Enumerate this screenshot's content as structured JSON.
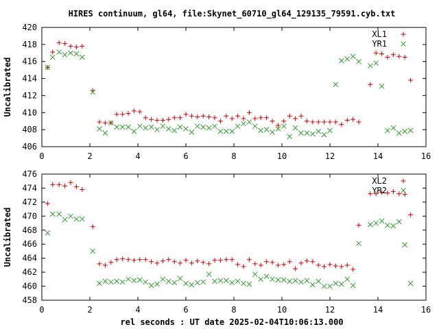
{
  "title": "HIRES continuum, gl64, file:Skynet_60710_gl64_129135_79591.cyb.txt",
  "xlabel": "rel seconds : UT date 2025-02-04T10:06:13.000",
  "colors": {
    "series_a": "#cc0000",
    "series_b": "#339933",
    "axis": "#000000",
    "background": "#ffffff"
  },
  "chart_data": [
    {
      "type": "scatter",
      "ylabel": "Uncalibrated",
      "xlim": [
        0,
        16
      ],
      "ylim": [
        406,
        420
      ],
      "xticks": [
        "0",
        "2",
        "4",
        "6",
        "8",
        "10",
        "12",
        "14",
        "16"
      ],
      "yticks": [
        "406",
        "408",
        "410",
        "412",
        "414",
        "416",
        "418",
        "420"
      ],
      "legend_position": "top-right",
      "grid": false,
      "series": [
        {
          "name": "XL1",
          "marker": "plus",
          "color": "#cc0000",
          "x": [
            0.24,
            0.45,
            0.72,
            0.96,
            1.2,
            1.44,
            1.68,
            2.12,
            2.4,
            2.64,
            2.88,
            3.12,
            3.36,
            3.6,
            3.84,
            4.08,
            4.32,
            4.56,
            4.8,
            5.04,
            5.28,
            5.52,
            5.76,
            6.0,
            6.24,
            6.48,
            6.72,
            6.96,
            7.2,
            7.44,
            7.68,
            7.92,
            8.16,
            8.4,
            8.64,
            8.88,
            9.12,
            9.36,
            9.6,
            9.84,
            10.08,
            10.32,
            10.56,
            10.8,
            11.04,
            11.28,
            11.52,
            11.76,
            12.0,
            12.24,
            12.48,
            12.72,
            12.96,
            13.2,
            13.68,
            13.92,
            14.16,
            14.4,
            14.64,
            14.88,
            15.12,
            15.36
          ],
          "y": [
            415.3,
            417.1,
            418.2,
            418.1,
            417.8,
            417.7,
            417.8,
            412.6,
            408.9,
            408.8,
            408.8,
            409.8,
            409.8,
            409.9,
            410.2,
            410.1,
            409.4,
            409.2,
            409.1,
            409.1,
            409.2,
            409.4,
            409.4,
            409.8,
            409.6,
            409.5,
            409.6,
            409.5,
            409.4,
            409.0,
            409.6,
            409.3,
            409.6,
            409.3,
            410.0,
            409.3,
            409.4,
            409.4,
            409.0,
            408.5,
            409.0,
            409.6,
            409.3,
            409.6,
            409.0,
            408.9,
            408.9,
            408.9,
            408.9,
            408.9,
            408.6,
            409.1,
            409.2,
            408.9,
            413.3,
            417.0,
            416.9,
            416.5,
            416.8,
            416.6,
            416.5,
            413.8
          ]
        },
        {
          "name": "YR1",
          "marker": "cross",
          "color": "#339933",
          "x": [
            0.24,
            0.45,
            0.72,
            0.96,
            1.2,
            1.44,
            1.68,
            2.12,
            2.4,
            2.64,
            2.88,
            3.12,
            3.36,
            3.6,
            3.84,
            4.08,
            4.32,
            4.56,
            4.8,
            5.04,
            5.28,
            5.52,
            5.76,
            6.0,
            6.24,
            6.48,
            6.72,
            6.96,
            7.2,
            7.44,
            7.68,
            7.92,
            8.16,
            8.4,
            8.64,
            8.88,
            9.12,
            9.36,
            9.6,
            9.84,
            10.08,
            10.32,
            10.56,
            10.8,
            11.04,
            11.28,
            11.52,
            11.76,
            12.0,
            12.24,
            12.48,
            12.72,
            12.96,
            13.2,
            13.68,
            13.92,
            14.16,
            14.4,
            14.64,
            14.88,
            15.12,
            15.36
          ],
          "y": [
            415.3,
            416.5,
            417.1,
            416.8,
            417.0,
            416.9,
            416.5,
            412.4,
            408.1,
            407.6,
            408.8,
            408.3,
            408.3,
            408.3,
            407.8,
            408.4,
            408.2,
            408.3,
            408.0,
            408.4,
            408.1,
            407.9,
            408.3,
            408.1,
            407.7,
            408.4,
            408.3,
            408.2,
            408.4,
            407.8,
            407.8,
            407.8,
            408.4,
            408.7,
            408.9,
            408.4,
            407.9,
            408.0,
            407.7,
            408.1,
            408.4,
            407.2,
            408.2,
            407.6,
            407.6,
            407.5,
            407.8,
            407.4,
            407.9,
            413.3,
            416.1,
            416.3,
            416.6,
            416.0,
            415.5,
            415.8,
            413.1,
            407.9,
            408.2,
            407.6,
            407.8,
            407.9
          ]
        }
      ]
    },
    {
      "type": "scatter",
      "ylabel": "Uncalibrated",
      "xlim": [
        0,
        16
      ],
      "ylim": [
        458,
        476
      ],
      "xticks": [
        "0",
        "2",
        "4",
        "6",
        "8",
        "10",
        "12",
        "14",
        "16"
      ],
      "yticks": [
        "458",
        "460",
        "462",
        "464",
        "466",
        "468",
        "470",
        "472",
        "474",
        "476"
      ],
      "legend_position": "top-right",
      "grid": false,
      "series": [
        {
          "name": "XL2",
          "marker": "plus",
          "color": "#cc0000",
          "x": [
            0.24,
            0.45,
            0.72,
            0.96,
            1.2,
            1.44,
            1.68,
            2.12,
            2.4,
            2.64,
            2.88,
            3.12,
            3.36,
            3.6,
            3.84,
            4.08,
            4.32,
            4.56,
            4.8,
            5.04,
            5.28,
            5.52,
            5.76,
            6.0,
            6.24,
            6.48,
            6.72,
            6.96,
            7.2,
            7.44,
            7.68,
            7.92,
            8.16,
            8.4,
            8.64,
            8.88,
            9.12,
            9.36,
            9.6,
            9.84,
            10.08,
            10.32,
            10.56,
            10.8,
            11.04,
            11.28,
            11.52,
            11.76,
            12.0,
            12.24,
            12.48,
            12.72,
            12.96,
            13.2,
            13.68,
            13.92,
            14.16,
            14.4,
            14.64,
            14.88,
            15.12,
            15.36
          ],
          "y": [
            471.8,
            474.5,
            474.5,
            474.3,
            474.8,
            474.2,
            473.8,
            468.5,
            463.2,
            463.0,
            463.4,
            463.8,
            463.9,
            463.8,
            463.7,
            463.8,
            463.8,
            463.5,
            463.3,
            463.6,
            463.8,
            463.5,
            463.3,
            463.7,
            463.3,
            463.6,
            463.4,
            463.2,
            463.7,
            463.7,
            463.8,
            463.8,
            463.1,
            462.8,
            463.8,
            463.2,
            463.0,
            463.5,
            463.4,
            463.0,
            463.1,
            463.5,
            462.5,
            463.3,
            463.6,
            463.5,
            463.0,
            462.8,
            463.1,
            462.9,
            462.8,
            463.0,
            462.4,
            468.7,
            473.2,
            473.2,
            473.4,
            473.3,
            473.5,
            473.2,
            473.1,
            470.2
          ]
        },
        {
          "name": "YR2",
          "marker": "cross",
          "color": "#339933",
          "x": [
            0.24,
            0.45,
            0.72,
            0.96,
            1.2,
            1.44,
            1.68,
            2.12,
            2.4,
            2.64,
            2.88,
            3.12,
            3.36,
            3.6,
            3.84,
            4.08,
            4.32,
            4.56,
            4.8,
            5.04,
            5.28,
            5.52,
            5.76,
            6.0,
            6.24,
            6.48,
            6.72,
            6.96,
            7.2,
            7.44,
            7.68,
            7.92,
            8.16,
            8.4,
            8.64,
            8.88,
            9.12,
            9.36,
            9.6,
            9.84,
            10.08,
            10.32,
            10.56,
            10.8,
            11.04,
            11.28,
            11.52,
            11.76,
            12.0,
            12.24,
            12.48,
            12.72,
            12.96,
            13.2,
            13.68,
            13.92,
            14.16,
            14.4,
            14.64,
            14.88,
            15.12,
            15.36
          ],
          "y": [
            467.6,
            470.3,
            470.3,
            469.5,
            470.0,
            469.6,
            469.6,
            465.0,
            460.4,
            460.7,
            460.6,
            460.7,
            460.6,
            461.0,
            460.8,
            460.9,
            460.6,
            460.1,
            460.3,
            461.0,
            460.7,
            460.5,
            461.1,
            460.4,
            460.2,
            460.5,
            460.6,
            461.7,
            460.7,
            460.8,
            460.8,
            460.5,
            460.7,
            460.4,
            460.3,
            461.7,
            461.0,
            461.4,
            461.0,
            460.9,
            460.9,
            460.7,
            460.8,
            460.6,
            460.8,
            460.2,
            460.7,
            460.0,
            460.0,
            460.4,
            460.3,
            461.0,
            460.1,
            466.1,
            468.8,
            469.0,
            469.3,
            468.7,
            468.6,
            469.2,
            465.9,
            460.4
          ]
        }
      ]
    }
  ]
}
